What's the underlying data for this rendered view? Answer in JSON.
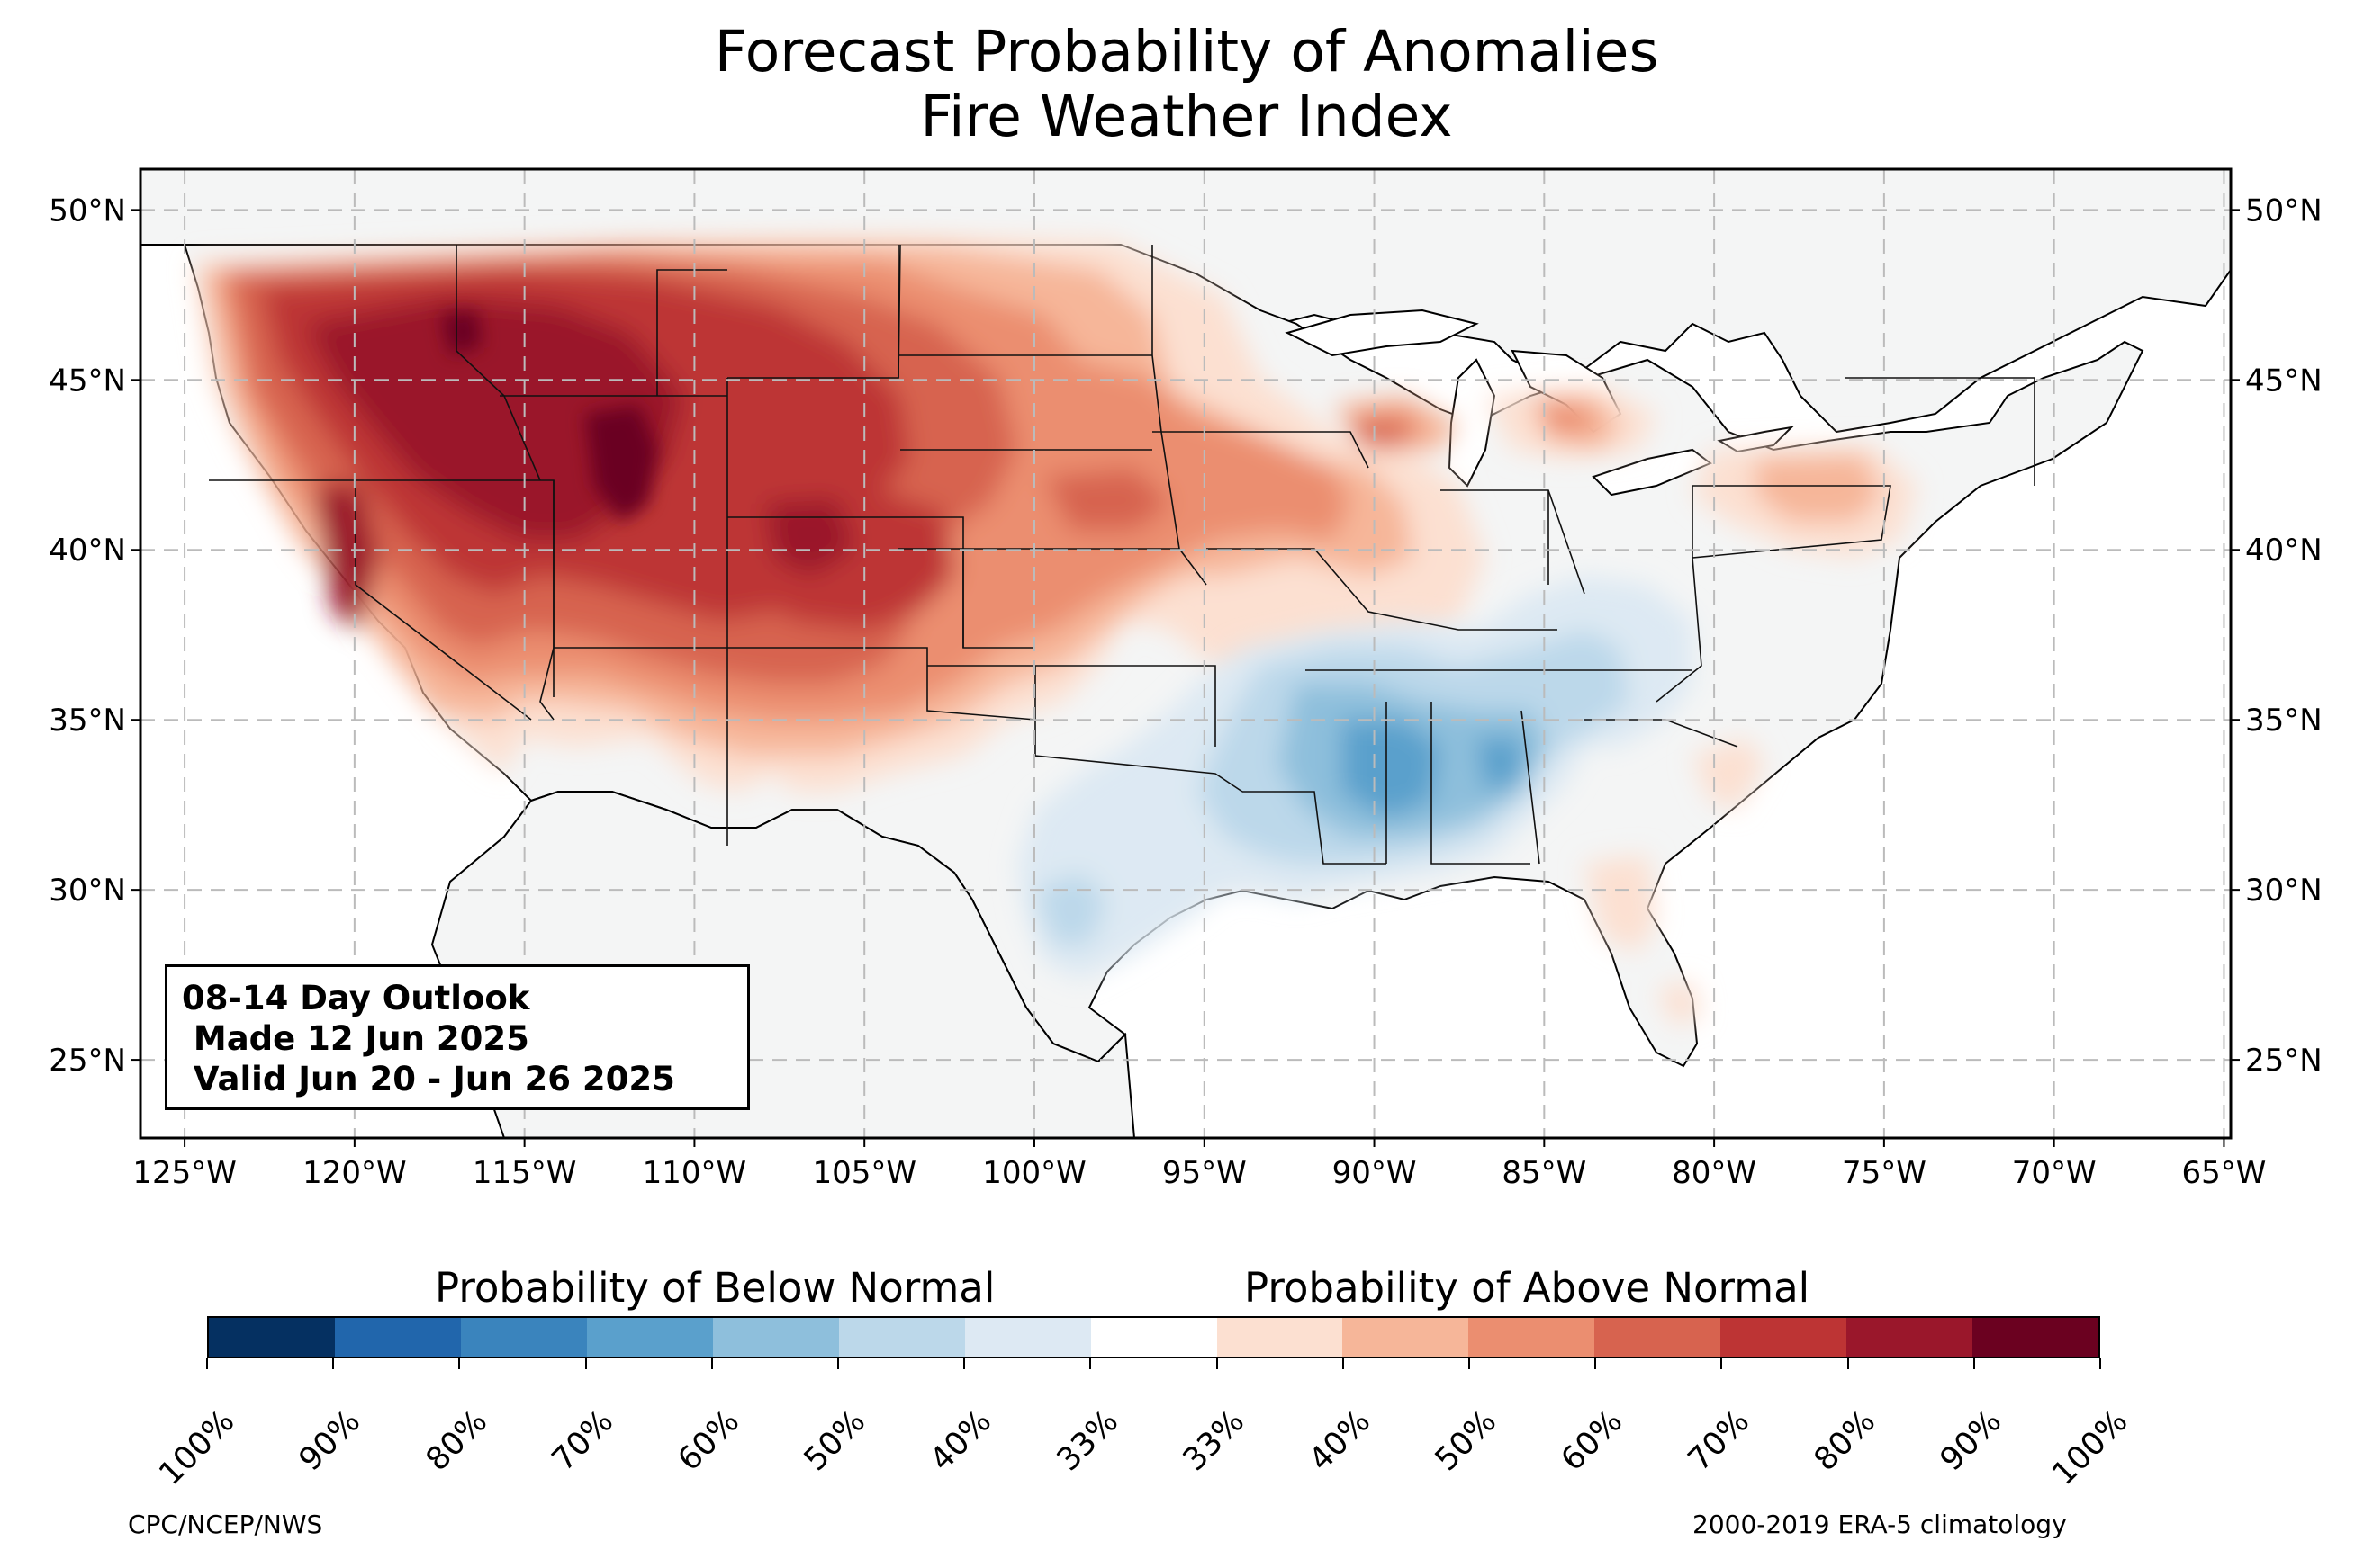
{
  "title": {
    "line1": "Forecast Probability of Anomalies",
    "line2": "Fire Weather Index"
  },
  "map": {
    "lat_range": [
      22.7,
      51.2
    ],
    "lon_range": [
      -126.3,
      -64.8
    ],
    "latitude_ticks": [
      {
        "value": 50,
        "label": "50°N"
      },
      {
        "value": 45,
        "label": "45°N"
      },
      {
        "value": 40,
        "label": "40°N"
      },
      {
        "value": 35,
        "label": "35°N"
      },
      {
        "value": 30,
        "label": "30°N"
      },
      {
        "value": 25,
        "label": "25°N"
      }
    ],
    "longitude_ticks": [
      {
        "value": -125,
        "label": "125°W"
      },
      {
        "value": -120,
        "label": "120°W"
      },
      {
        "value": -115,
        "label": "115°W"
      },
      {
        "value": -110,
        "label": "110°W"
      },
      {
        "value": -105,
        "label": "105°W"
      },
      {
        "value": -100,
        "label": "100°W"
      },
      {
        "value": -95,
        "label": "95°W"
      },
      {
        "value": -90,
        "label": "90°W"
      },
      {
        "value": -85,
        "label": "85°W"
      },
      {
        "value": -80,
        "label": "80°W"
      },
      {
        "value": -75,
        "label": "75°W"
      },
      {
        "value": -70,
        "label": "70°W"
      },
      {
        "value": -65,
        "label": "65°W"
      }
    ],
    "gridlines": "dashed",
    "land_color": "#f4f5f5",
    "anomaly_regions": [
      {
        "name": "Northwest and Great Basin",
        "category": "above",
        "probability": "70-80%"
      },
      {
        "name": "Wyoming / Idaho core",
        "category": "above",
        "probability": "80-100%"
      },
      {
        "name": "Central Rockies and Southwest",
        "category": "above",
        "probability": "60-80%"
      },
      {
        "name": "Northern and Central Plains",
        "category": "above",
        "probability": "50-60%"
      },
      {
        "name": "Upper Midwest",
        "category": "above",
        "probability": "40-60%"
      },
      {
        "name": "Mid-Atlantic",
        "category": "above",
        "probability": "33-50%"
      },
      {
        "name": "Lower Mississippi Valley and Southeast",
        "category": "below",
        "probability": "50-70%"
      },
      {
        "name": "Texas Coast",
        "category": "below",
        "probability": "40-50%"
      }
    ]
  },
  "outlook_box": {
    "line1": "08-14 Day Outlook",
    "line2": " Made 12 Jun 2025",
    "line3": " Valid Jun 20 - Jun 26 2025"
  },
  "colorbar": {
    "below_label": "Probability of Below Normal",
    "above_label": "Probability of Above Normal",
    "colors": [
      "#053061",
      "#2166ac",
      "#3a84bd",
      "#5aa0cc",
      "#8ebfdc",
      "#bcd8ea",
      "#dde9f3",
      "#ffffff",
      "#fce0d1",
      "#f6b699",
      "#eb8e70",
      "#d7634f",
      "#bd3434",
      "#9a172b",
      "#6b0120"
    ],
    "tick_labels": [
      "100%",
      "90%",
      "80%",
      "70%",
      "60%",
      "50%",
      "40%",
      "33%",
      "33%",
      "40%",
      "50%",
      "60%",
      "70%",
      "80%",
      "90%",
      "100%"
    ]
  },
  "footer": {
    "left": "CPC/NCEP/NWS",
    "right": "2000-2019 ERA-5 climatology"
  }
}
